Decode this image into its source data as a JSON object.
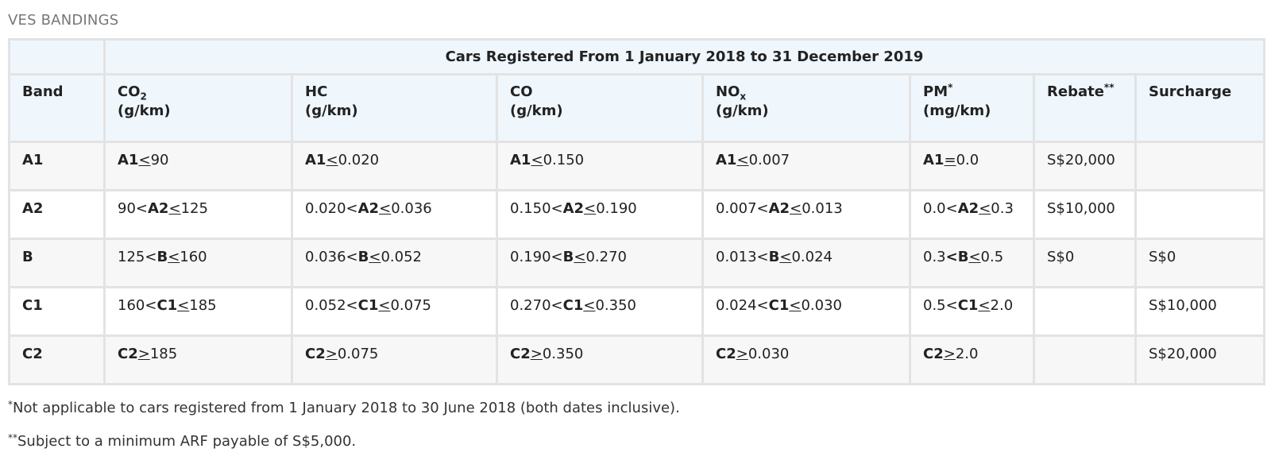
{
  "heading": "VES BANDINGS",
  "table": {
    "title": "Cars Registered From 1 January 2018 to 31 December 2019",
    "headers": {
      "band": "Band",
      "co2_main": "CO",
      "co2_sub": "2",
      "co2_unit": "(g/km)",
      "hc_main": "HC",
      "hc_unit": "(g/km)",
      "co_main": "CO",
      "co_unit": "(g/km)",
      "nox_main": "NO",
      "nox_sub": "x",
      "nox_unit": "(g/km)",
      "pm_main": "PM",
      "pm_sup": "*",
      "pm_unit": "(mg/km)",
      "rebate_main": "Rebate",
      "rebate_sup": "**",
      "surcharge": "Surcharge"
    },
    "rows": [
      {
        "band": "A1",
        "co2": {
          "pre": "",
          "mid": "A1",
          "op": "<",
          "post": "90"
        },
        "hc": {
          "pre": "",
          "mid": "A1",
          "op": "<",
          "post": "0.020"
        },
        "co": {
          "pre": "",
          "mid": "A1",
          "op": "<",
          "post": "0.150"
        },
        "nox": {
          "pre": "",
          "mid": "A1",
          "op": "<",
          "post": "0.007"
        },
        "pm": {
          "pre": "",
          "mid": "A1",
          "op": "=",
          "post": "0.0"
        },
        "rebate": "S$20,000",
        "surcharge": ""
      },
      {
        "band": "A2",
        "co2": {
          "pre": "90<",
          "mid": "A2",
          "op": "<",
          "post": "125"
        },
        "hc": {
          "pre": "0.020<",
          "mid": "A2",
          "op": "<",
          "post": "0.036"
        },
        "co": {
          "pre": "0.150<",
          "mid": "A2",
          "op": "<",
          "post": "0.190"
        },
        "nox": {
          "pre": "0.007<",
          "mid": "A2",
          "op": "<",
          "post": "0.013"
        },
        "pm": {
          "pre": "0.0<",
          "mid": "A2",
          "op": "<",
          "post": "0.3"
        },
        "rebate": "S$10,000",
        "surcharge": ""
      },
      {
        "band": "B",
        "co2": {
          "pre": "125<",
          "mid": "B",
          "op": "<",
          "post": "160"
        },
        "hc": {
          "pre": "0.036<",
          "mid": "B",
          "op": "<",
          "post": "0.052"
        },
        "co": {
          "pre": "0.190<",
          "mid": "B",
          "op": "<",
          "post": "0.270"
        },
        "nox": {
          "pre": "0.013<",
          "mid": "B",
          "op": "<",
          "post": "0.024"
        },
        "pm": {
          "pre": "0.3",
          "mid": "<B",
          "op": "<",
          "post": "0.5"
        },
        "rebate": "S$0",
        "surcharge": "S$0"
      },
      {
        "band": "C1",
        "co2": {
          "pre": "160<",
          "mid": "C1",
          "op": "<",
          "post": "185"
        },
        "hc": {
          "pre": "0.052<",
          "mid": "C1",
          "op": "<",
          "post": "0.075"
        },
        "co": {
          "pre": "0.270<",
          "mid": "C1",
          "op": "<",
          "post": "0.350"
        },
        "nox": {
          "pre": "0.024<",
          "mid": "C1",
          "op": "<",
          "post": "0.030"
        },
        "pm": {
          "pre": "0.5<",
          "mid": "C1",
          "op": "<",
          "post": "2.0"
        },
        "rebate": "",
        "surcharge": "S$10,000"
      },
      {
        "band": "C2",
        "co2": {
          "pre": "",
          "mid": "C2",
          "op": ">",
          "post": "185"
        },
        "hc": {
          "pre": "",
          "mid": "C2",
          "op": ">",
          "post": "0.075"
        },
        "co": {
          "pre": "",
          "mid": "C2",
          "op": ">",
          "post": "0.350"
        },
        "nox": {
          "pre": "",
          "mid": "C2",
          "op": ">",
          "post": "0.030"
        },
        "pm": {
          "pre": "",
          "mid": "C2",
          "op": ">",
          "post": "2.0"
        },
        "rebate": "",
        "surcharge": "S$20,000"
      }
    ]
  },
  "notes": [
    {
      "mark": "*",
      "text": "Not applicable to cars registered from 1 January 2018 to 30 June 2018 (both dates inclusive)."
    },
    {
      "mark": "**",
      "text": "Subject to a minimum ARF payable of S$5,000."
    }
  ]
}
